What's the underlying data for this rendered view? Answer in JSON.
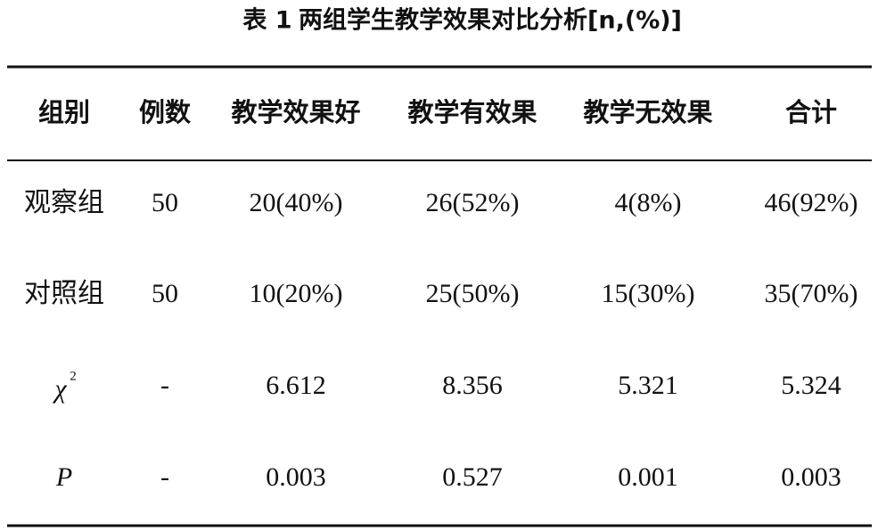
{
  "table": {
    "caption": {
      "label": "表 1",
      "text": "两组学生教学效果对比分析[n,(%)]"
    },
    "header": [
      "组别",
      "例数",
      "教学效果好",
      "教学有效果",
      "教学无效果",
      "合计"
    ],
    "rows": [
      [
        "观察组",
        "50",
        "20(40%)",
        "26(52%)",
        "4(8%)",
        "46(92%)"
      ],
      [
        "对照组",
        "50",
        "10(20%)",
        "25(50%)",
        "15(30%)",
        "35(70%)"
      ],
      [
        {
          "base": "χ",
          "sup": "2"
        },
        "-",
        "6.612",
        "8.356",
        "5.321",
        "5.324"
      ],
      [
        "P",
        "-",
        "0.003",
        "0.527",
        "0.001",
        "0.003"
      ]
    ]
  }
}
